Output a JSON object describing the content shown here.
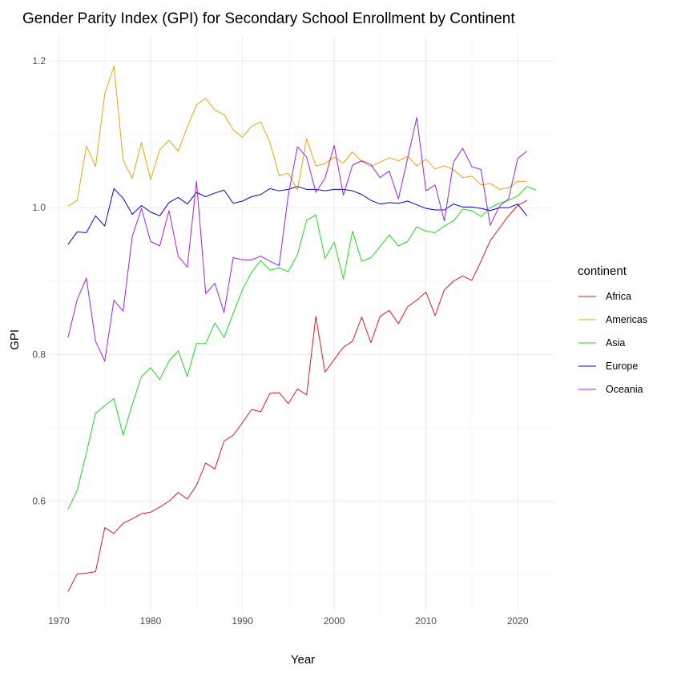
{
  "chart_data": {
    "type": "line",
    "title": "Gender Parity Index (GPI) for Secondary School Enrollment by Continent",
    "xlabel": "Year",
    "ylabel": "GPI",
    "xlim": [
      1969,
      2024
    ],
    "ylim": [
      0.45,
      1.235
    ],
    "x_ticks": [
      1970,
      1980,
      1990,
      2000,
      2010,
      2020
    ],
    "y_ticks": [
      0.6,
      0.8,
      1.0,
      1.2
    ],
    "y_tick_labels": [
      "0.6",
      "0.8",
      "1.0",
      "1.2"
    ],
    "grid": true,
    "legend": {
      "title": "continent",
      "position": "right"
    },
    "x": [
      1971,
      1972,
      1973,
      1974,
      1975,
      1976,
      1977,
      1978,
      1979,
      1980,
      1981,
      1982,
      1983,
      1984,
      1985,
      1986,
      1987,
      1988,
      1989,
      1990,
      1991,
      1992,
      1993,
      1994,
      1995,
      1996,
      1997,
      1998,
      1999,
      2000,
      2001,
      2002,
      2003,
      2004,
      2005,
      2006,
      2007,
      2008,
      2009,
      2010,
      2011,
      2012,
      2013,
      2014,
      2015,
      2016,
      2017,
      2018,
      2019,
      2020,
      2021,
      2022
    ],
    "series": [
      {
        "name": "Africa",
        "color": "#e41a1c",
        "values": [
          0.477,
          0.501,
          0.502,
          0.504,
          0.564,
          0.556,
          0.57,
          0.576,
          0.583,
          0.585,
          0.592,
          0.6,
          0.612,
          0.603,
          0.622,
          0.652,
          0.644,
          0.682,
          0.69,
          0.707,
          0.725,
          0.722,
          0.747,
          0.748,
          0.733,
          0.753,
          0.745,
          0.852,
          0.776,
          0.793,
          0.81,
          0.818,
          0.851,
          0.816,
          0.852,
          0.86,
          0.842,
          0.865,
          0.874,
          0.885,
          0.853,
          0.888,
          0.9,
          0.907,
          0.901,
          0.927,
          0.955,
          0.972,
          0.989,
          1.003,
          1.01,
          null
        ]
      },
      {
        "name": "Americas",
        "color": "#f0a30a",
        "values": [
          1.002,
          1.01,
          1.084,
          1.056,
          1.155,
          1.193,
          1.065,
          1.04,
          1.089,
          1.038,
          1.079,
          1.092,
          1.077,
          1.11,
          1.14,
          1.149,
          1.133,
          1.127,
          1.106,
          1.096,
          1.111,
          1.117,
          1.089,
          1.044,
          1.047,
          1.024,
          1.094,
          1.057,
          1.06,
          1.069,
          1.061,
          1.076,
          1.063,
          1.056,
          1.062,
          1.068,
          1.064,
          1.07,
          1.057,
          1.066,
          1.053,
          1.057,
          1.052,
          1.041,
          1.043,
          1.031,
          1.033,
          1.025,
          1.027,
          1.036,
          1.036,
          null
        ]
      },
      {
        "name": "Asia",
        "color": "#1fdb1f",
        "values": [
          0.589,
          0.615,
          0.666,
          0.72,
          0.73,
          0.74,
          0.69,
          0.732,
          0.77,
          0.782,
          0.766,
          0.791,
          0.805,
          0.77,
          0.815,
          0.815,
          0.843,
          0.823,
          0.856,
          0.888,
          0.912,
          0.928,
          0.915,
          0.918,
          0.913,
          0.936,
          0.983,
          0.99,
          0.931,
          0.953,
          0.903,
          0.968,
          0.927,
          0.932,
          0.947,
          0.963,
          0.948,
          0.954,
          0.974,
          0.968,
          0.966,
          0.975,
          0.982,
          0.998,
          0.996,
          0.988,
          1.0,
          1.006,
          1.01,
          1.016,
          1.029,
          1.024
        ]
      },
      {
        "name": "Europe",
        "color": "#0000e0",
        "values": [
          0.95,
          0.967,
          0.966,
          0.989,
          0.975,
          1.026,
          1.013,
          0.991,
          1.003,
          0.994,
          0.989,
          1.007,
          1.014,
          1.005,
          1.021,
          1.015,
          1.02,
          1.024,
          1.006,
          1.009,
          1.015,
          1.018,
          1.026,
          1.023,
          1.025,
          1.029,
          1.025,
          1.025,
          1.023,
          1.025,
          1.025,
          1.023,
          1.018,
          1.01,
          1.005,
          1.007,
          1.006,
          1.009,
          1.004,
          0.999,
          0.997,
          0.997,
          1.005,
          1.001,
          1.001,
          0.999,
          0.996,
          1.0,
          1.0,
          1.005,
          0.989,
          null
        ]
      },
      {
        "name": "Oceania",
        "color": "#a020f0",
        "values": [
          0.823,
          0.875,
          0.904,
          0.818,
          0.791,
          0.874,
          0.859,
          0.961,
          0.999,
          0.954,
          0.948,
          0.996,
          0.934,
          0.919,
          1.036,
          0.883,
          0.897,
          0.857,
          0.932,
          0.929,
          0.929,
          0.934,
          0.927,
          0.921,
          1.017,
          1.083,
          1.069,
          1.021,
          1.04,
          1.085,
          1.017,
          1.058,
          1.064,
          1.059,
          1.041,
          1.05,
          1.012,
          1.067,
          1.123,
          1.023,
          1.031,
          0.982,
          1.062,
          1.081,
          1.056,
          1.052,
          0.976,
          1.002,
          1.012,
          1.067,
          1.077,
          null
        ]
      }
    ]
  }
}
